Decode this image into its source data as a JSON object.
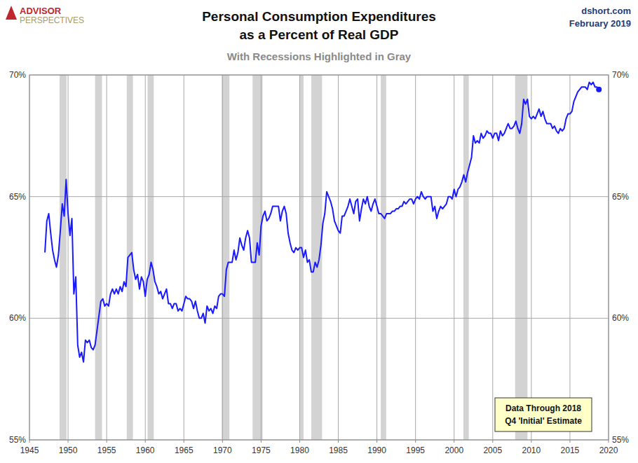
{
  "chart_data": {
    "type": "line",
    "title": [
      "Personal Consumption Expenditures",
      "as a Percent of Real GDP"
    ],
    "subtitle": "With Recessions Highlighted in Gray",
    "logo": [
      "ADVISOR",
      "PERSPECTIVES"
    ],
    "source": "dshort.com",
    "date": "February 2019",
    "note": [
      "Data Through 2018",
      "Q4 'Initial' Estimate"
    ],
    "color": "#1a1aff",
    "grid": true,
    "xlim": [
      1945,
      2020
    ],
    "xticks": [
      1945,
      1950,
      1955,
      1960,
      1965,
      1970,
      1975,
      1980,
      1985,
      1990,
      1995,
      2000,
      2005,
      2010,
      2015,
      2020
    ],
    "ylim": [
      55,
      70
    ],
    "yticks": [
      {
        "value": 55,
        "label": "55%"
      },
      {
        "value": 60,
        "label": "60%"
      },
      {
        "value": 65,
        "label": "65%"
      },
      {
        "value": 70,
        "label": "70%"
      }
    ],
    "recessions": [
      [
        1948.9,
        1949.8
      ],
      [
        1953.5,
        1954.4
      ],
      [
        1957.6,
        1958.4
      ],
      [
        1960.3,
        1961.1
      ],
      [
        1969.9,
        1970.9
      ],
      [
        1973.9,
        1975.2
      ],
      [
        1980.0,
        1980.5
      ],
      [
        1981.5,
        1982.9
      ],
      [
        1990.5,
        1991.2
      ],
      [
        2001.2,
        2001.9
      ],
      [
        2007.9,
        2009.5
      ]
    ],
    "x": [
      1947,
      1947.25,
      1947.5,
      1947.75,
      1948,
      1948.25,
      1948.5,
      1948.75,
      1949,
      1949.25,
      1949.5,
      1949.75,
      1950,
      1950.25,
      1950.5,
      1950.75,
      1951,
      1951.25,
      1951.5,
      1951.75,
      1952,
      1952.25,
      1952.5,
      1952.75,
      1953,
      1953.25,
      1953.5,
      1953.75,
      1954,
      1954.25,
      1954.5,
      1954.75,
      1955,
      1955.25,
      1955.5,
      1955.75,
      1956,
      1956.25,
      1956.5,
      1956.75,
      1957,
      1957.25,
      1957.5,
      1957.75,
      1958,
      1958.25,
      1958.5,
      1958.75,
      1959,
      1959.25,
      1959.5,
      1959.75,
      1960,
      1960.25,
      1960.5,
      1960.75,
      1961,
      1961.25,
      1961.5,
      1961.75,
      1962,
      1962.25,
      1962.5,
      1962.75,
      1963,
      1963.25,
      1963.5,
      1963.75,
      1964,
      1964.25,
      1964.5,
      1964.75,
      1965,
      1965.25,
      1965.5,
      1965.75,
      1966,
      1966.25,
      1966.5,
      1966.75,
      1967,
      1967.25,
      1967.5,
      1967.75,
      1968,
      1968.25,
      1968.5,
      1968.75,
      1969,
      1969.25,
      1969.5,
      1969.75,
      1970,
      1970.25,
      1970.5,
      1970.75,
      1971,
      1971.25,
      1971.5,
      1971.75,
      1972,
      1972.25,
      1972.5,
      1972.75,
      1973,
      1973.25,
      1973.5,
      1973.75,
      1974,
      1974.25,
      1974.5,
      1974.75,
      1975,
      1975.25,
      1975.5,
      1975.75,
      1976,
      1976.25,
      1976.5,
      1976.75,
      1977,
      1977.25,
      1977.5,
      1977.75,
      1978,
      1978.25,
      1978.5,
      1978.75,
      1979,
      1979.25,
      1979.5,
      1979.75,
      1980,
      1980.25,
      1980.5,
      1980.75,
      1981,
      1981.25,
      1981.5,
      1981.75,
      1982,
      1982.25,
      1982.5,
      1982.75,
      1983,
      1983.25,
      1983.5,
      1983.75,
      1984,
      1984.25,
      1984.5,
      1984.75,
      1985,
      1985.25,
      1985.5,
      1985.75,
      1986,
      1986.25,
      1986.5,
      1986.75,
      1987,
      1987.25,
      1987.5,
      1987.75,
      1988,
      1988.25,
      1988.5,
      1988.75,
      1989,
      1989.25,
      1989.5,
      1989.75,
      1990,
      1990.25,
      1990.5,
      1990.75,
      1991,
      1991.25,
      1991.5,
      1991.75,
      1992,
      1992.25,
      1992.5,
      1992.75,
      1993,
      1993.25,
      1993.5,
      1993.75,
      1994,
      1994.25,
      1994.5,
      1994.75,
      1995,
      1995.25,
      1995.5,
      1995.75,
      1996,
      1996.25,
      1996.5,
      1996.75,
      1997,
      1997.25,
      1997.5,
      1997.75,
      1998,
      1998.25,
      1998.5,
      1998.75,
      1999,
      1999.25,
      1999.5,
      1999.75,
      2000,
      2000.25,
      2000.5,
      2000.75,
      2001,
      2001.25,
      2001.5,
      2001.75,
      2002,
      2002.25,
      2002.5,
      2002.75,
      2003,
      2003.25,
      2003.5,
      2003.75,
      2004,
      2004.25,
      2004.5,
      2004.75,
      2005,
      2005.25,
      2005.5,
      2005.75,
      2006,
      2006.25,
      2006.5,
      2006.75,
      2007,
      2007.25,
      2007.5,
      2007.75,
      2008,
      2008.25,
      2008.5,
      2008.75,
      2009,
      2009.25,
      2009.5,
      2009.75,
      2010,
      2010.25,
      2010.5,
      2010.75,
      2011,
      2011.25,
      2011.5,
      2011.75,
      2012,
      2012.25,
      2012.5,
      2012.75,
      2013,
      2013.25,
      2013.5,
      2013.75,
      2014,
      2014.25,
      2014.5,
      2014.75,
      2015,
      2015.25,
      2015.5,
      2015.75,
      2016,
      2016.25,
      2016.5,
      2016.75,
      2017,
      2017.25,
      2017.5,
      2017.75,
      2018,
      2018.25,
      2018.5,
      2018.75
    ],
    "values": [
      62.7,
      64.0,
      64.3,
      63.5,
      62.8,
      62.4,
      62.1,
      62.6,
      63.6,
      64.7,
      64.2,
      65.7,
      64.3,
      63.4,
      64.1,
      61.0,
      61.7,
      58.9,
      58.4,
      58.6,
      58.2,
      59.1,
      59.0,
      59.1,
      58.8,
      58.7,
      58.9,
      59.5,
      60.1,
      60.7,
      60.8,
      60.5,
      60.6,
      60.5,
      61.0,
      61.2,
      61.0,
      61.2,
      61.0,
      61.3,
      61.1,
      61.5,
      61.3,
      62.5,
      62.6,
      62.7,
      62.0,
      61.6,
      61.8,
      61.2,
      61.7,
      61.5,
      60.9,
      61.6,
      61.8,
      62.3,
      62.0,
      61.5,
      61.3,
      61.0,
      61.1,
      60.8,
      61.0,
      61.2,
      60.6,
      60.6,
      60.4,
      60.6,
      60.6,
      60.3,
      60.4,
      60.3,
      60.6,
      60.9,
      60.8,
      60.8,
      60.7,
      60.4,
      60.7,
      60.3,
      60.0,
      60.0,
      60.2,
      59.8,
      60.5,
      60.3,
      60.4,
      60.2,
      60.5,
      60.4,
      60.9,
      61.0,
      61.0,
      60.9,
      62.0,
      62.3,
      62.3,
      62.3,
      62.8,
      62.4,
      62.7,
      63.3,
      63.0,
      62.8,
      63.3,
      63.6,
      63.3,
      62.3,
      62.3,
      62.3,
      63.1,
      62.6,
      63.8,
      64.2,
      64.4,
      64.0,
      64.1,
      64.3,
      64.6,
      64.6,
      64.6,
      64.6,
      64.0,
      64.4,
      64.6,
      64.3,
      63.5,
      63.1,
      62.8,
      62.7,
      62.9,
      62.8,
      62.9,
      62.9,
      62.5,
      62.8,
      62.3,
      62.4,
      61.9,
      61.9,
      62.3,
      62.1,
      62.4,
      63.0,
      63.9,
      64.3,
      65.2,
      65.0,
      64.8,
      64.5,
      64.0,
      63.8,
      63.6,
      63.5,
      64.2,
      64.2,
      64.4,
      64.6,
      64.9,
      64.6,
      64.3,
      64.8,
      64.9,
      64.0,
      64.5,
      64.9,
      64.7,
      65.0,
      64.6,
      64.4,
      64.7,
      64.9,
      64.6,
      64.3,
      64.3,
      64.2,
      64.1,
      64.3,
      64.3,
      64.3,
      64.4,
      64.4,
      64.5,
      64.5,
      64.6,
      64.6,
      64.8,
      64.7,
      64.8,
      64.9,
      64.9,
      64.7,
      64.9,
      65.0,
      64.9,
      65.2,
      65.0,
      64.9,
      65.0,
      65.0,
      65.0,
      64.4,
      64.6,
      64.1,
      64.4,
      64.6,
      64.5,
      64.6,
      64.7,
      65.0,
      65.0,
      64.9,
      65.3,
      65.0,
      65.3,
      65.4,
      65.6,
      65.9,
      65.6,
      66.0,
      66.3,
      66.6,
      67.5,
      67.2,
      67.3,
      67.2,
      67.6,
      67.4,
      67.5,
      67.7,
      67.6,
      67.6,
      67.4,
      67.6,
      67.6,
      67.3,
      67.7,
      67.5,
      67.6,
      67.8,
      68.0,
      67.8,
      67.8,
      67.9,
      68.1,
      67.8,
      67.6,
      68.0,
      69.0,
      68.8,
      69.0,
      68.3,
      68.2,
      68.3,
      68.2,
      68.4,
      68.6,
      68.3,
      68.5,
      68.2,
      68.0,
      68.0,
      68.0,
      67.8,
      67.9,
      67.7,
      67.6,
      67.8,
      67.7,
      67.8,
      68.2,
      68.4,
      68.4,
      68.5,
      68.9,
      69.1,
      69.3,
      69.4,
      69.5,
      69.5,
      69.5,
      69.4,
      69.7,
      69.6,
      69.7,
      69.5,
      69.5,
      69.4
    ]
  }
}
